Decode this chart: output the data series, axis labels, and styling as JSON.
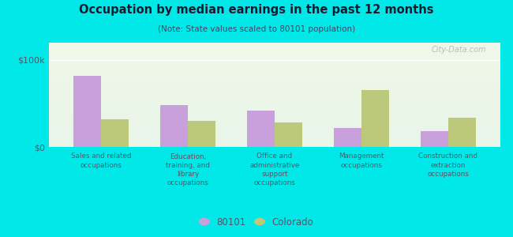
{
  "title": "Occupation by median earnings in the past 12 months",
  "subtitle": "(Note: State values scaled to 80101 population)",
  "categories": [
    "Sales and related\noccupations",
    "Education,\ntraining, and\nlibrary\noccupations",
    "Office and\nadministrative\nsupport\noccupations",
    "Management\noccupations",
    "Construction and\nextraction\noccupations"
  ],
  "values_80101": [
    82000,
    48000,
    42000,
    22000,
    18000
  ],
  "values_colorado": [
    32000,
    30000,
    28000,
    65000,
    34000
  ],
  "color_80101": "#c9a0dc",
  "color_colorado": "#bcc87a",
  "ylim": [
    0,
    120000
  ],
  "yticks": [
    0,
    100000
  ],
  "ytick_labels": [
    "$0",
    "$100k"
  ],
  "legend_labels": [
    "80101",
    "Colorado"
  ],
  "bar_width": 0.32,
  "outer_background": "#00e8e8",
  "chart_bg_top": "#f0f8e8",
  "chart_bg_bottom": "#e8f5e8",
  "watermark": "City-Data.com",
  "title_color": "#1a1a2e",
  "subtitle_color": "#444466",
  "label_color": "#555566"
}
